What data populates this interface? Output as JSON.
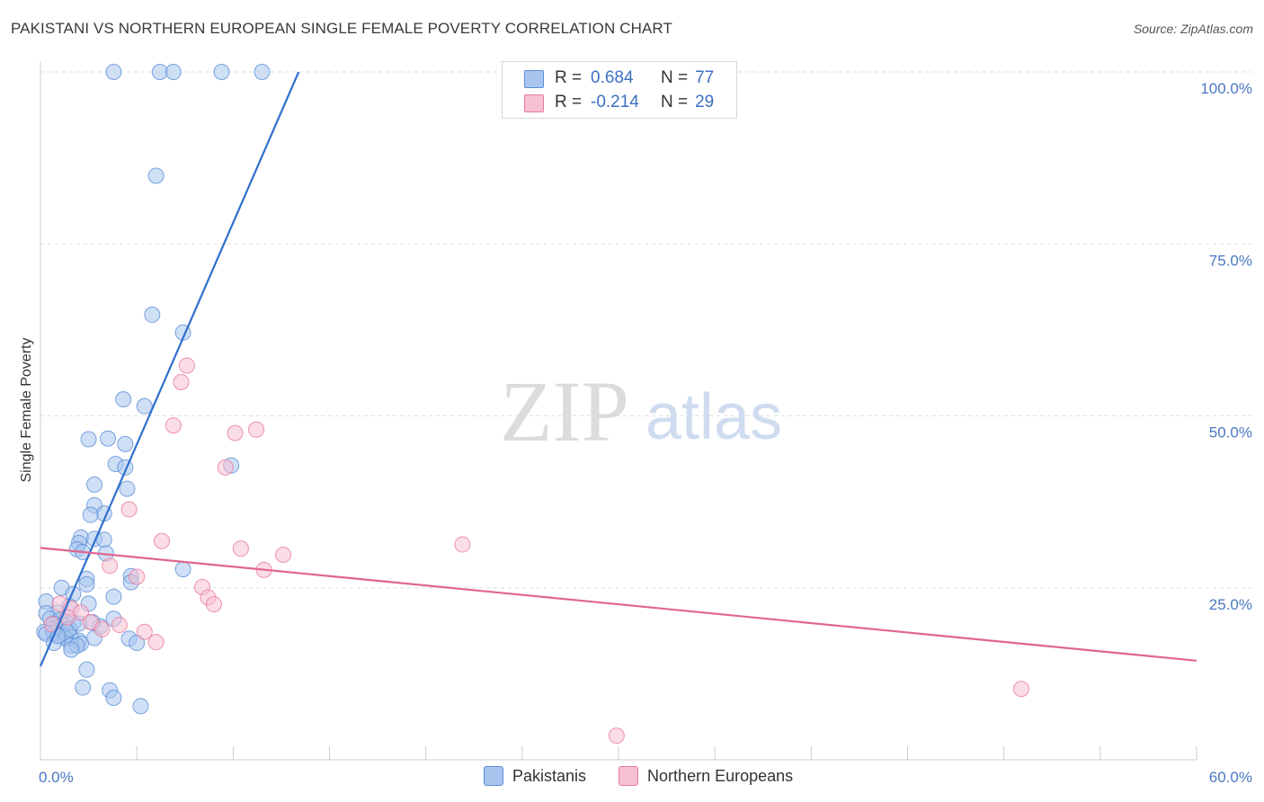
{
  "title": "PAKISTANI VS NORTHERN EUROPEAN SINGLE FEMALE POVERTY CORRELATION CHART",
  "source": "Source: ZipAtlas.com",
  "watermark": {
    "zip": "ZIP",
    "atlas": "atlas"
  },
  "legend": {
    "rows": [
      {
        "r_label": "R =",
        "r_value": "0.684",
        "n_label": "N =",
        "n_value": "77",
        "color": "#a7c5ef",
        "stroke": "#5b8fd6"
      },
      {
        "r_label": "R =",
        "r_value": "-0.214",
        "n_label": "N =",
        "n_value": "29",
        "color": "#f8c1d1",
        "stroke": "#e8799d"
      }
    ]
  },
  "bottom_legend": {
    "series1": "Pakistanis",
    "series2": "Northern Europeans"
  },
  "chart_data": {
    "type": "scatter",
    "title": "PAKISTANI VS NORTHERN EUROPEAN SINGLE FEMALE POVERTY CORRELATION CHART",
    "xlabel": "",
    "ylabel": "Single Female Poverty",
    "xlim": [
      0,
      60
    ],
    "ylim": [
      0,
      100
    ],
    "x_tick_labels": [
      "0.0%",
      "60.0%"
    ],
    "y_tick_labels": [
      "100.0%",
      "75.0%",
      "50.0%",
      "25.0%"
    ],
    "y_tick_values": [
      100,
      75,
      50,
      25
    ],
    "series": [
      {
        "name": "Pakistanis",
        "color": "#a7c5ef",
        "stroke": "#5b8fd6",
        "trend_color": "#2f6fce",
        "trend": {
          "x0": 0,
          "y0": 13.6,
          "x1": 13.4,
          "y1": 100
        },
        "points": [
          [
            3.8,
            100
          ],
          [
            6.2,
            100
          ],
          [
            6.9,
            100
          ],
          [
            9.4,
            100
          ],
          [
            11.5,
            100
          ],
          [
            6.0,
            84.9
          ],
          [
            5.8,
            64.7
          ],
          [
            7.4,
            62.1
          ],
          [
            4.3,
            52.4
          ],
          [
            5.4,
            51.4
          ],
          [
            2.5,
            46.6
          ],
          [
            3.5,
            46.7
          ],
          [
            4.4,
            45.9
          ],
          [
            3.9,
            43.0
          ],
          [
            4.4,
            42.5
          ],
          [
            9.9,
            42.8
          ],
          [
            4.5,
            39.4
          ],
          [
            2.8,
            40.0
          ],
          [
            2.8,
            37.0
          ],
          [
            3.3,
            35.8
          ],
          [
            2.6,
            35.6
          ],
          [
            2.1,
            32.3
          ],
          [
            2.8,
            32.1
          ],
          [
            3.3,
            32.0
          ],
          [
            2.0,
            31.5
          ],
          [
            1.9,
            30.6
          ],
          [
            2.2,
            30.2
          ],
          [
            3.4,
            30.0
          ],
          [
            7.4,
            27.7
          ],
          [
            4.7,
            26.7
          ],
          [
            2.4,
            26.3
          ],
          [
            4.7,
            25.8
          ],
          [
            2.4,
            25.5
          ],
          [
            1.1,
            25.0
          ],
          [
            1.7,
            24.1
          ],
          [
            3.8,
            23.7
          ],
          [
            0.3,
            23.0
          ],
          [
            2.5,
            22.7
          ],
          [
            1.5,
            22.3
          ],
          [
            0.9,
            21.4
          ],
          [
            0.3,
            21.3
          ],
          [
            0.5,
            20.5
          ],
          [
            1.0,
            20.3
          ],
          [
            1.3,
            20.1
          ],
          [
            1.7,
            19.9
          ],
          [
            0.7,
            19.8
          ],
          [
            1.2,
            19.6
          ],
          [
            3.1,
            19.4
          ],
          [
            0.9,
            19.2
          ],
          [
            0.6,
            19.0
          ],
          [
            1.4,
            18.8
          ],
          [
            0.2,
            18.6
          ],
          [
            0.7,
            18.4
          ],
          [
            0.3,
            18.3
          ],
          [
            1.0,
            18.1
          ],
          [
            1.3,
            17.9
          ],
          [
            1.6,
            17.8
          ],
          [
            2.8,
            17.7
          ],
          [
            4.6,
            17.6
          ],
          [
            1.3,
            17.6
          ],
          [
            2.0,
            17.3
          ],
          [
            0.7,
            17.0
          ],
          [
            5.0,
            17.0
          ],
          [
            2.1,
            16.9
          ],
          [
            1.6,
            16.6
          ],
          [
            1.9,
            16.6
          ],
          [
            3.8,
            20.5
          ],
          [
            1.6,
            16.0
          ],
          [
            2.4,
            13.1
          ],
          [
            2.2,
            10.5
          ],
          [
            3.6,
            10.1
          ],
          [
            3.8,
            9.0
          ],
          [
            5.2,
            7.8
          ],
          [
            2.7,
            20.0
          ],
          [
            1.5,
            19.0
          ],
          [
            0.9,
            18.0
          ],
          [
            2.0,
            19.8
          ]
        ]
      },
      {
        "name": "Northern Europeans",
        "color": "#f8c1d1",
        "stroke": "#e8799d",
        "trend_color": "#e0668f",
        "trend": {
          "x0": 0,
          "y0": 30.8,
          "x1": 60,
          "y1": 14.4
        },
        "points": [
          [
            7.6,
            57.3
          ],
          [
            7.3,
            54.9
          ],
          [
            6.9,
            48.6
          ],
          [
            11.2,
            48.0
          ],
          [
            10.1,
            47.5
          ],
          [
            9.6,
            42.5
          ],
          [
            4.6,
            36.4
          ],
          [
            6.3,
            31.8
          ],
          [
            21.9,
            31.3
          ],
          [
            10.4,
            30.7
          ],
          [
            12.6,
            29.8
          ],
          [
            3.6,
            28.2
          ],
          [
            11.6,
            27.6
          ],
          [
            5.0,
            26.6
          ],
          [
            8.4,
            25.1
          ],
          [
            8.7,
            23.6
          ],
          [
            9.0,
            22.6
          ],
          [
            1.0,
            22.7
          ],
          [
            1.6,
            22.0
          ],
          [
            2.1,
            21.4
          ],
          [
            1.4,
            20.7
          ],
          [
            2.6,
            20.0
          ],
          [
            0.6,
            19.7
          ],
          [
            4.1,
            19.6
          ],
          [
            5.4,
            18.6
          ],
          [
            3.2,
            19.0
          ],
          [
            6.0,
            17.1
          ],
          [
            50.9,
            10.3
          ],
          [
            29.9,
            3.5
          ]
        ]
      }
    ]
  }
}
